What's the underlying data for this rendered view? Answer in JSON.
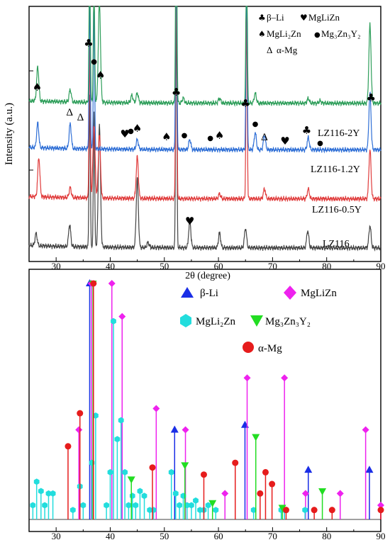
{
  "chart_data": [
    {
      "type": "line",
      "ylabel": "Intensity (a.u.)",
      "xlabel": "2θ (degree)",
      "xlim": [
        25,
        90
      ],
      "xticks": [
        30,
        40,
        50,
        60,
        70,
        80,
        90
      ],
      "series": [
        {
          "name": "LZ116",
          "color": "#444444",
          "offset": 0.0,
          "peaks": [
            [
              26.3,
              0.05
            ],
            [
              32.5,
              0.09
            ],
            [
              36.2,
              0.62
            ],
            [
              37.0,
              0.55
            ],
            [
              38.0,
              0.5
            ],
            [
              45.0,
              0.28
            ],
            [
              47.0,
              0.02
            ],
            [
              52.2,
              1.0
            ],
            [
              54.7,
              0.11
            ],
            [
              60.2,
              0.06
            ],
            [
              65.0,
              0.08
            ],
            [
              76.5,
              0.07
            ],
            [
              88.0,
              0.09
            ]
          ]
        },
        {
          "name": "LZ116-0.5Y",
          "color": "#e03c3c",
          "offset": 0.2,
          "peaks": [
            [
              26.8,
              0.16
            ],
            [
              32.6,
              0.04
            ],
            [
              36.2,
              0.62
            ],
            [
              37.0,
              0.3
            ],
            [
              38.0,
              0.26
            ],
            [
              45.0,
              0.17
            ],
            [
              52.2,
              1.0
            ],
            [
              60.2,
              0.02
            ],
            [
              65.2,
              0.78
            ],
            [
              68.5,
              0.04
            ],
            [
              76.6,
              0.04
            ],
            [
              88.0,
              0.2
            ]
          ]
        },
        {
          "name": "LZ116-1.2Y",
          "color": "#2f6fd6",
          "offset": 0.4,
          "peaks": [
            [
              26.6,
              0.1
            ],
            [
              32.6,
              0.1
            ],
            [
              36.2,
              0.62
            ],
            [
              37.0,
              0.58
            ],
            [
              45.0,
              0.04
            ],
            [
              52.2,
              1.0
            ],
            [
              54.7,
              0.04
            ],
            [
              65.2,
              0.78
            ],
            [
              66.8,
              0.07
            ],
            [
              68.5,
              0.06
            ],
            [
              76.6,
              0.05
            ],
            [
              88.0,
              0.23
            ]
          ]
        },
        {
          "name": "LZ116-2Y",
          "color": "#2e9e5a",
          "offset": 0.59,
          "peaks": [
            [
              26.6,
              0.14
            ],
            [
              32.6,
              0.05
            ],
            [
              36.2,
              0.62
            ],
            [
              37.0,
              0.55
            ],
            [
              38.0,
              0.42
            ],
            [
              44.0,
              0.03
            ],
            [
              45.0,
              0.04
            ],
            [
              52.2,
              1.0
            ],
            [
              53.5,
              0.02
            ],
            [
              60.2,
              0.02
            ],
            [
              65.2,
              0.78
            ],
            [
              66.8,
              0.04
            ],
            [
              76.6,
              0.02
            ],
            [
              78.8,
              0.01
            ],
            [
              88.0,
              0.32
            ]
          ]
        }
      ],
      "legend": {
        "items": [
          {
            "symbol": "♣",
            "label": "β–Li"
          },
          {
            "symbol": "♥",
            "label": "MgLiZn"
          },
          {
            "symbol": "♠",
            "label": "MgLi₂Zn"
          },
          {
            "symbol": "●",
            "label": "Mg₃Zn₃Y₂"
          },
          {
            "symbol": "Δ",
            "label": "α-Mg"
          }
        ]
      },
      "annotations": [
        {
          "symbol": "♠",
          "x": 26.5
        },
        {
          "symbol": "Δ",
          "x": 32.5
        },
        {
          "symbol": "Δ",
          "x": 34.5
        },
        {
          "symbol": "♣",
          "x": 36.0
        },
        {
          "symbol": "●",
          "x": 37.0
        },
        {
          "symbol": "♠",
          "x": 38.2
        },
        {
          "symbol": "♥",
          "x": 42.7
        },
        {
          "symbol": "●",
          "x": 43.8
        },
        {
          "symbol": "♠",
          "x": 45.0
        },
        {
          "symbol": "♠",
          "x": 50.4
        },
        {
          "symbol": "♣",
          "x": 52.2
        },
        {
          "symbol": "●",
          "x": 53.7
        },
        {
          "symbol": "●",
          "x": 58.5
        },
        {
          "symbol": "♠",
          "x": 60.2
        },
        {
          "symbol": "♣",
          "x": 65.0
        },
        {
          "symbol": "●",
          "x": 66.8
        },
        {
          "symbol": "Δ",
          "x": 68.5
        },
        {
          "symbol": "♥",
          "x": 72.3
        },
        {
          "symbol": "♣",
          "x": 76.3
        },
        {
          "symbol": "●",
          "x": 78.8
        },
        {
          "symbol": "♣",
          "x": 88.2
        },
        {
          "symbol": "♥",
          "x": 54.7
        }
      ]
    },
    {
      "type": "stem",
      "xlim": [
        25,
        90
      ],
      "xticks": [
        30,
        40,
        50,
        60,
        70,
        80,
        90
      ],
      "legend": [
        {
          "label": "β-Li",
          "marker": "triangle-up",
          "color": "#1a2ee6"
        },
        {
          "label": "MgLiZn",
          "marker": "diamond",
          "color": "#ee22ee"
        },
        {
          "label": "MgLi₂Zn",
          "marker": "hexagon",
          "color": "#22dddd"
        },
        {
          "label": "Mg₃Zn₃Y₂",
          "marker": "triangle-down",
          "color": "#22dd22"
        },
        {
          "label": "α-Mg",
          "marker": "circle",
          "color": "#e61c1c"
        }
      ],
      "series": [
        {
          "name": "β-Li",
          "marker": "triangle-up",
          "color": "#1a2ee6",
          "x": [
            36.2,
            51.9,
            64.9,
            76.6,
            87.9
          ],
          "y": [
            1.0,
            0.38,
            0.4,
            0.21,
            0.21
          ]
        },
        {
          "name": "MgLiZn",
          "marker": "diamond",
          "color": "#ee22ee",
          "x": [
            34.2,
            36.5,
            40.3,
            42.2,
            48.5,
            53.9,
            61.2,
            65.3,
            72.2,
            76.1,
            82.5,
            87.2,
            90.0
          ],
          "y": [
            0.38,
            1.0,
            1.0,
            0.86,
            0.47,
            0.38,
            0.11,
            0.6,
            0.6,
            0.11,
            0.11,
            0.38,
            0.06
          ]
        },
        {
          "name": "MgLi₂Zn",
          "marker": "hexagon",
          "color": "#22dddd",
          "x": [
            25.7,
            26.4,
            27.2,
            27.9,
            28.6,
            29.4,
            33.1,
            34.4,
            35.0,
            36.6,
            37.3,
            39.3,
            40.0,
            40.6,
            41.3,
            42.0,
            42.7,
            43.4,
            44.1,
            44.7,
            45.5,
            46.3,
            47.3,
            48.0,
            51.3,
            52.1,
            52.8,
            53.5,
            54.2,
            55.0,
            55.8,
            56.6,
            57.3,
            58.1,
            59.5,
            66.5,
            71.6,
            72.2,
            76.0
          ],
          "y": [
            0.06,
            0.16,
            0.12,
            0.06,
            0.11,
            0.11,
            0.04,
            0.14,
            0.06,
            0.24,
            0.44,
            0.06,
            0.2,
            0.84,
            0.34,
            0.42,
            0.2,
            0.06,
            0.1,
            0.06,
            0.12,
            0.1,
            0.04,
            0.04,
            0.2,
            0.11,
            0.06,
            0.1,
            0.06,
            0.06,
            0.08,
            0.04,
            0.04,
            0.06,
            0.04,
            0.04,
            0.04,
            0.04,
            0.04
          ]
        },
        {
          "name": "Mg₃Zn₃Y₂",
          "marker": "triangle-down",
          "color": "#22dd22",
          "x": [
            36.8,
            43.9,
            53.8,
            58.9,
            66.9,
            71.8,
            79.2
          ],
          "y": [
            1.0,
            0.17,
            0.23,
            0.07,
            0.35,
            0.05,
            0.12
          ]
        },
        {
          "name": "α-Mg",
          "marker": "circle",
          "color": "#e61c1c",
          "x": [
            32.2,
            34.4,
            36.9,
            47.8,
            57.3,
            63.1,
            67.7,
            68.7,
            69.9,
            72.5,
            77.7,
            81.0,
            90.0
          ],
          "y": [
            0.31,
            0.45,
            1.0,
            0.22,
            0.19,
            0.24,
            0.11,
            0.2,
            0.15,
            0.04,
            0.04,
            0.04,
            0.04
          ]
        }
      ]
    }
  ]
}
